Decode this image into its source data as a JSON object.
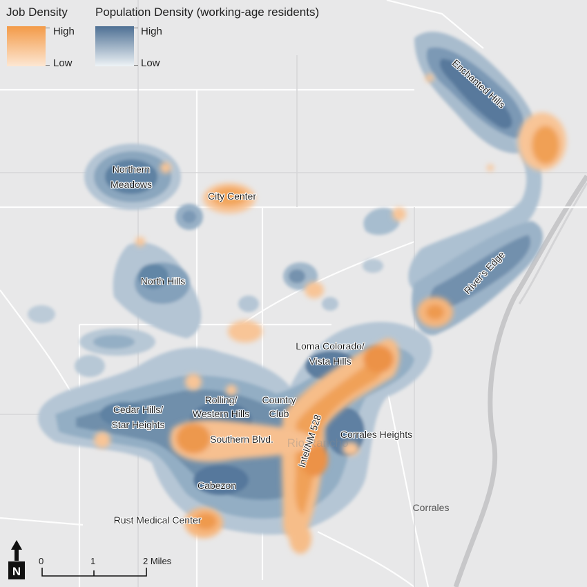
{
  "legend": {
    "job": {
      "title": "Job Density",
      "high": "High",
      "low": "Low",
      "color": "#f4a14f"
    },
    "population": {
      "title": "Population Density (working-age residents)",
      "high": "High",
      "low": "Low",
      "color": "#4e7094"
    }
  },
  "places": [
    {
      "id": "enchanted-hills",
      "text": "Enchanted Hills"
    },
    {
      "id": "northern-meadows-1",
      "text": "Northern"
    },
    {
      "id": "northern-meadows-2",
      "text": "Meadows"
    },
    {
      "id": "city-center",
      "text": "City Center"
    },
    {
      "id": "north-hills",
      "text": "North Hills"
    },
    {
      "id": "rivers-edge",
      "text": "River's Edge"
    },
    {
      "id": "loma-colorado-1",
      "text": "Loma Colorado/"
    },
    {
      "id": "loma-colorado-2",
      "text": "Vista Hills"
    },
    {
      "id": "cedar-hills-1",
      "text": "Cedar Hills/"
    },
    {
      "id": "cedar-hills-2",
      "text": "Star Heights"
    },
    {
      "id": "rolling-western-1",
      "text": "Rolling/"
    },
    {
      "id": "rolling-western-2",
      "text": "Western Hills"
    },
    {
      "id": "country-club-1",
      "text": "Country"
    },
    {
      "id": "country-club-2",
      "text": "Club"
    },
    {
      "id": "southern-blvd",
      "text": "Southern Blvd."
    },
    {
      "id": "intel-nm528",
      "text": "Intel/NM 528"
    },
    {
      "id": "corrales-heights",
      "text": "Corrales Heights"
    },
    {
      "id": "cabezon",
      "text": "Cabezon"
    },
    {
      "id": "rust-medical-center",
      "text": "Rust Medical Center"
    },
    {
      "id": "corrales",
      "text": "Corrales"
    },
    {
      "id": "rio-rancho-faint",
      "text": "Rio Rancho"
    }
  ],
  "scale_bar": {
    "unit_label": "2 Miles",
    "ticks": [
      "0",
      "1",
      "2 Miles"
    ]
  },
  "north_arrow": {
    "letter": "N"
  }
}
